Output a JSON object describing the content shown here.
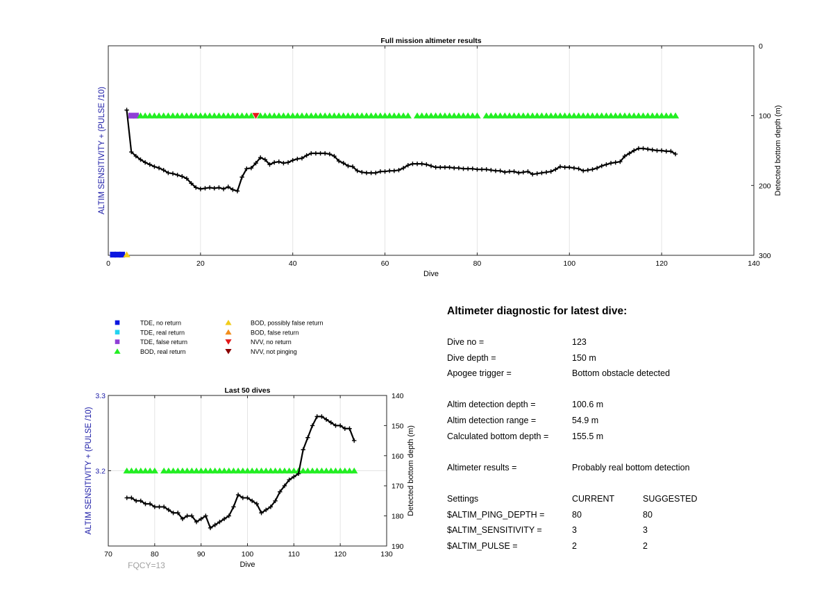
{
  "chart_data": [
    {
      "type": "scatter",
      "title": "Full mission altimeter results",
      "xlabel": "Dive",
      "ylabel": "ALTIM SENSITIVITY + (PULSE /10)",
      "y2label": "Detected bottom depth (m)",
      "xlim": [
        0,
        140
      ],
      "xticks": [
        0,
        20,
        40,
        60,
        80,
        100,
        120,
        140
      ],
      "y2lim": [
        0,
        300
      ],
      "y2ticks": [
        0,
        100,
        200,
        300
      ],
      "y2_reversed": true,
      "grid": true,
      "markers": [
        {
          "type": "TDE, no return",
          "dives": [
            1,
            2,
            3
          ],
          "level": "axis-bottom"
        },
        {
          "type": "BOD, possibly false return",
          "dives": [
            4
          ],
          "level": "axis-bottom"
        },
        {
          "type": "TDE, false return",
          "dives": [
            5,
            6
          ],
          "depth": 100
        },
        {
          "type": "BOD, real return",
          "ranges": [
            [
              7,
              31
            ],
            [
              33,
              65
            ],
            [
              67,
              80
            ],
            [
              82,
              123
            ]
          ],
          "depth": 100
        },
        {
          "type": "NVV, no return",
          "dives": [
            32
          ],
          "depth": 100
        }
      ],
      "series": [
        {
          "x": [
            4,
            5,
            6,
            7,
            8,
            9,
            10,
            11,
            12,
            13,
            14,
            15,
            16,
            17,
            18,
            19,
            20,
            21,
            22,
            23,
            24,
            25,
            26,
            27,
            28,
            29,
            30,
            31,
            32,
            33,
            34,
            35,
            36,
            37,
            38,
            39,
            40,
            41,
            42,
            43,
            44,
            45,
            46,
            47,
            48,
            49,
            50,
            51,
            52,
            53,
            54,
            55,
            56,
            57,
            58,
            59,
            60,
            61,
            62,
            63,
            64,
            65,
            66,
            67,
            68,
            69,
            70,
            71,
            72,
            73,
            74,
            75,
            76,
            77,
            78,
            79,
            80,
            81,
            82,
            83,
            84,
            85,
            86,
            87,
            88,
            89,
            90,
            91,
            92,
            93,
            94,
            95,
            96,
            97,
            98,
            99,
            100,
            101,
            102,
            103,
            104,
            105,
            106,
            107,
            108,
            109,
            110,
            111,
            112,
            113,
            114,
            115,
            116,
            117,
            118,
            119,
            120,
            121,
            122,
            123
          ],
          "y": [
            92,
            152,
            158,
            163,
            167,
            170,
            173,
            175,
            178,
            182,
            183,
            185,
            187,
            190,
            197,
            203,
            205,
            204,
            203,
            204,
            203,
            205,
            202,
            206,
            208,
            188,
            176,
            175,
            168,
            160,
            163,
            170,
            167,
            166,
            168,
            167,
            164,
            162,
            161,
            157,
            154,
            154,
            154,
            154,
            155,
            158,
            165,
            168,
            172,
            173,
            179,
            181,
            182,
            182,
            182,
            180,
            180,
            179,
            179,
            178,
            175,
            171,
            169,
            169,
            169,
            170,
            172,
            174,
            174,
            174,
            174,
            175,
            175,
            176,
            176,
            176,
            177,
            177,
            177,
            178,
            179,
            179,
            181,
            180,
            180,
            182,
            181,
            180,
            184,
            183,
            182,
            181,
            180,
            177,
            173,
            174,
            174,
            175,
            176,
            179,
            178,
            177,
            175,
            172,
            170,
            168,
            167,
            166,
            158,
            154,
            150,
            147,
            147,
            148,
            149,
            150,
            150,
            151,
            151,
            155
          ]
        }
      ]
    },
    {
      "type": "scatter",
      "title": "Last 50 dives",
      "xlabel": "Dive",
      "ylabel": "ALTIM SENSITIVITY + (PULSE /10)",
      "y2label": "Detected bottom depth (m)",
      "xlim": [
        70,
        130
      ],
      "xticks": [
        70,
        80,
        90,
        100,
        110,
        120,
        130
      ],
      "ylim": [
        3.1,
        3.3
      ],
      "yticks": [
        3.2,
        3.3
      ],
      "y2lim": [
        140,
        190
      ],
      "y2ticks": [
        140,
        150,
        160,
        170,
        180,
        190
      ],
      "y2_reversed": true,
      "grid": true,
      "markers": [
        {
          "type": "BOD, real return",
          "ranges": [
            [
              74,
              80
            ],
            [
              82,
              123
            ]
          ],
          "level": 3.2
        }
      ],
      "series": [
        {
          "x": [
            74,
            75,
            76,
            77,
            78,
            79,
            80,
            81,
            82,
            83,
            84,
            85,
            86,
            87,
            88,
            89,
            90,
            91,
            92,
            93,
            94,
            95,
            96,
            97,
            98,
            99,
            100,
            101,
            102,
            103,
            104,
            105,
            106,
            107,
            108,
            109,
            110,
            111,
            112,
            113,
            114,
            115,
            116,
            117,
            118,
            119,
            120,
            121,
            122,
            123
          ],
          "y": [
            174,
            174,
            175,
            175,
            176,
            176,
            177,
            177,
            177,
            178,
            179,
            179,
            181,
            180,
            180,
            182,
            181,
            180,
            184,
            183,
            182,
            181,
            180,
            177,
            173,
            174,
            174,
            175,
            176,
            179,
            178,
            177,
            175,
            172,
            170,
            168,
            167,
            166,
            158,
            154,
            150,
            147,
            147,
            148,
            149,
            150,
            150,
            151,
            151,
            155
          ]
        }
      ],
      "annotation": "FQCY=13"
    }
  ],
  "legend": {
    "items": [
      {
        "label": "TDE, no return",
        "color": "#0b16e0",
        "shape": "square"
      },
      {
        "label": "TDE, real return",
        "color": "#22d3f0",
        "shape": "square"
      },
      {
        "label": "TDE, false return",
        "color": "#8f3fd6",
        "shape": "square"
      },
      {
        "label": "BOD, real return",
        "color": "#22ee22",
        "shape": "triangle-up"
      },
      {
        "label": "BOD, possibly false return",
        "color": "#f2cc1b",
        "shape": "triangle-up"
      },
      {
        "label": "BOD, false return",
        "color": "#f28e1b",
        "shape": "triangle-up"
      },
      {
        "label": "NVV, no return",
        "color": "#e31a1a",
        "shape": "triangle-down"
      },
      {
        "label": "NVV, not pinging",
        "color": "#8b0000",
        "shape": "triangle-down"
      }
    ]
  },
  "diagnostic": {
    "title": "Altimeter diagnostic for latest dive:",
    "dive_no_label": "Dive no =",
    "dive_no": "123",
    "dive_depth_label": "Dive depth =",
    "dive_depth": "150 m",
    "apogee_label": "Apogee trigger =",
    "apogee": "Bottom obstacle detected",
    "altim_depth_label": "Altim detection depth =",
    "altim_depth": "100.6 m",
    "altim_range_label": "Altim detection range =",
    "altim_range": "54.9 m",
    "calc_depth_label": "Calculated bottom depth =",
    "calc_depth": "155.5 m",
    "results_label": "Altimeter results =",
    "results": "Probably real bottom detection",
    "settings_label": "Settings",
    "current_label": "CURRENT",
    "suggested_label": "SUGGESTED",
    "settings": [
      {
        "name": "$ALTIM_PING_DEPTH =",
        "current": "80",
        "suggested": "80"
      },
      {
        "name": "$ALTIM_SENSITIVITY =",
        "current": "3",
        "suggested": "3"
      },
      {
        "name": "$ALTIM_PULSE =",
        "current": "2",
        "suggested": "2"
      }
    ]
  },
  "colors": {
    "axis_label_left": "#1a1aa6",
    "line": "#000000",
    "grid": "#e4e4e4",
    "annotation": "#a0a0a0"
  }
}
